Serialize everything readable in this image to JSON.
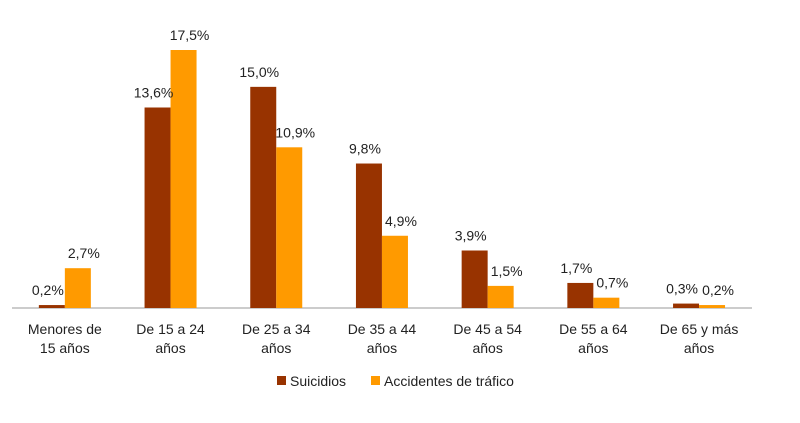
{
  "chart_data": {
    "type": "bar",
    "title": "",
    "xlabel": "",
    "ylabel": "",
    "ylim": [
      0,
      17.5
    ],
    "grid": false,
    "legend_position": "bottom",
    "categories": [
      [
        "Menores de",
        "15 años"
      ],
      [
        "De 15 a 24",
        "años"
      ],
      [
        "De 25 a 34",
        "años"
      ],
      [
        "De 35 a 44",
        "años"
      ],
      [
        "De 45 a 54",
        "años"
      ],
      [
        "De 55 a 64",
        "años"
      ],
      [
        "De 65 y más",
        "años"
      ]
    ],
    "series": [
      {
        "name": "Suicidios",
        "color": "#983300",
        "values": [
          0.2,
          13.6,
          15.0,
          9.8,
          3.9,
          1.7,
          0.3
        ],
        "labels": [
          "0,2%",
          "13,6%",
          "15,0%",
          "9,8%",
          "3,9%",
          "1,7%",
          "0,3%"
        ]
      },
      {
        "name": "Accidentes de tráfico",
        "color": "#FF9A00",
        "values": [
          2.7,
          17.5,
          10.9,
          4.9,
          1.5,
          0.7,
          0.2
        ],
        "labels": [
          "2,7%",
          "17,5%",
          "10,9%",
          "4,9%",
          "1,5%",
          "0,7%",
          "0,2%"
        ]
      }
    ]
  }
}
